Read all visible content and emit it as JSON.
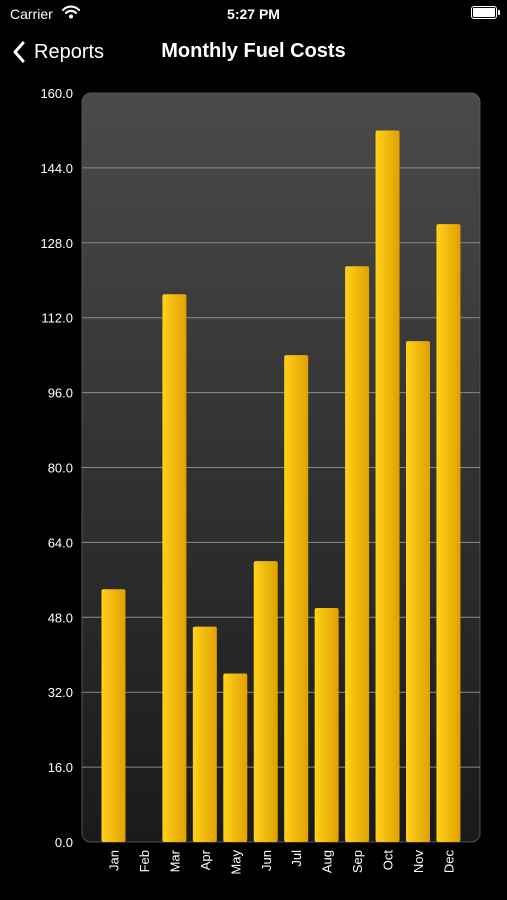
{
  "status": {
    "carrier": "Carrier",
    "time": "5:27 PM"
  },
  "nav": {
    "back_label": "Reports",
    "title": "Monthly Fuel Costs"
  },
  "colors": {
    "bar_light": "#ffd21a",
    "bar_dark": "#e0a000",
    "plot_top": "#4a4a4a",
    "plot_bottom": "#1a1a1a",
    "grid": "#8a8a8a"
  },
  "chart_data": {
    "type": "bar",
    "title": "Monthly Fuel Costs",
    "xlabel": "",
    "ylabel": "",
    "categories": [
      "Jan",
      "Feb",
      "Mar",
      "Apr",
      "May",
      "Jun",
      "Jul",
      "Aug",
      "Sep",
      "Oct",
      "Nov",
      "Dec"
    ],
    "values": [
      54,
      0,
      117,
      46,
      36,
      60,
      104,
      50,
      123,
      152,
      107,
      132
    ],
    "ylim": [
      0,
      160
    ],
    "yticks": [
      "0.0",
      "16.0",
      "32.0",
      "48.0",
      "64.0",
      "80.0",
      "96.0",
      "112.0",
      "128.0",
      "144.0",
      "160.0"
    ],
    "grid": true,
    "legend": "none"
  }
}
